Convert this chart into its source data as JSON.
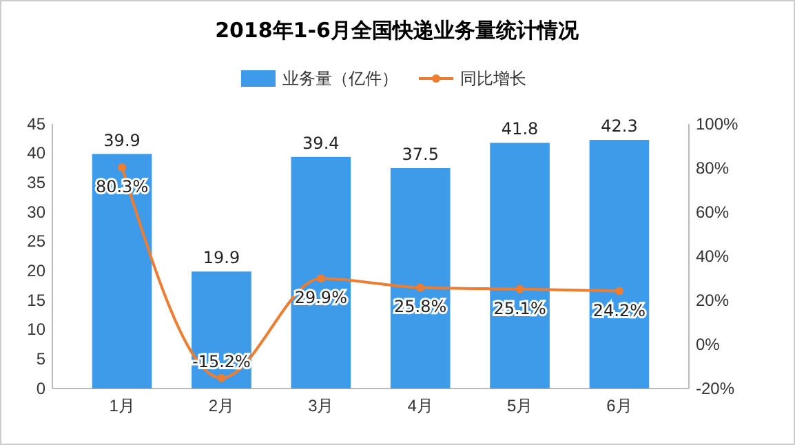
{
  "chart_data": {
    "type": "bar",
    "title": "2018年1-6月全国快递业务量统计情况",
    "categories": [
      "1月",
      "2月",
      "3月",
      "4月",
      "5月",
      "6月"
    ],
    "series": [
      {
        "name": "业务量（亿件）",
        "color": "#3d9be9",
        "values": [
          39.9,
          19.9,
          39.4,
          37.5,
          41.8,
          42.3
        ],
        "value_labels": [
          "39.9",
          "19.9",
          "39.4",
          "37.5",
          "41.8",
          "42.3"
        ]
      },
      {
        "name": "同比增长",
        "type": "line",
        "axis": "y2",
        "color": "#ed7d31",
        "values": [
          80.3,
          -15.2,
          29.9,
          25.8,
          25.1,
          24.2
        ],
        "value_labels": [
          "80.3%",
          "-15.2%",
          "29.9%",
          "25.8%",
          "25.1%",
          "24.2%"
        ]
      }
    ],
    "ylim": [
      0,
      45
    ],
    "yticks": [
      0,
      5,
      10,
      15,
      20,
      25,
      30,
      35,
      40,
      45
    ],
    "y2lim": [
      -20,
      100
    ],
    "y2ticks": [
      {
        "value": -20,
        "label": "-20%"
      },
      {
        "value": 0,
        "label": "0%"
      },
      {
        "value": 20,
        "label": "20%"
      },
      {
        "value": 40,
        "label": "40%"
      },
      {
        "value": 60,
        "label": "60%"
      },
      {
        "value": 80,
        "label": "80%"
      },
      {
        "value": 100,
        "label": "100%"
      }
    ],
    "marker": "circle",
    "legend": "top",
    "grid": false
  }
}
